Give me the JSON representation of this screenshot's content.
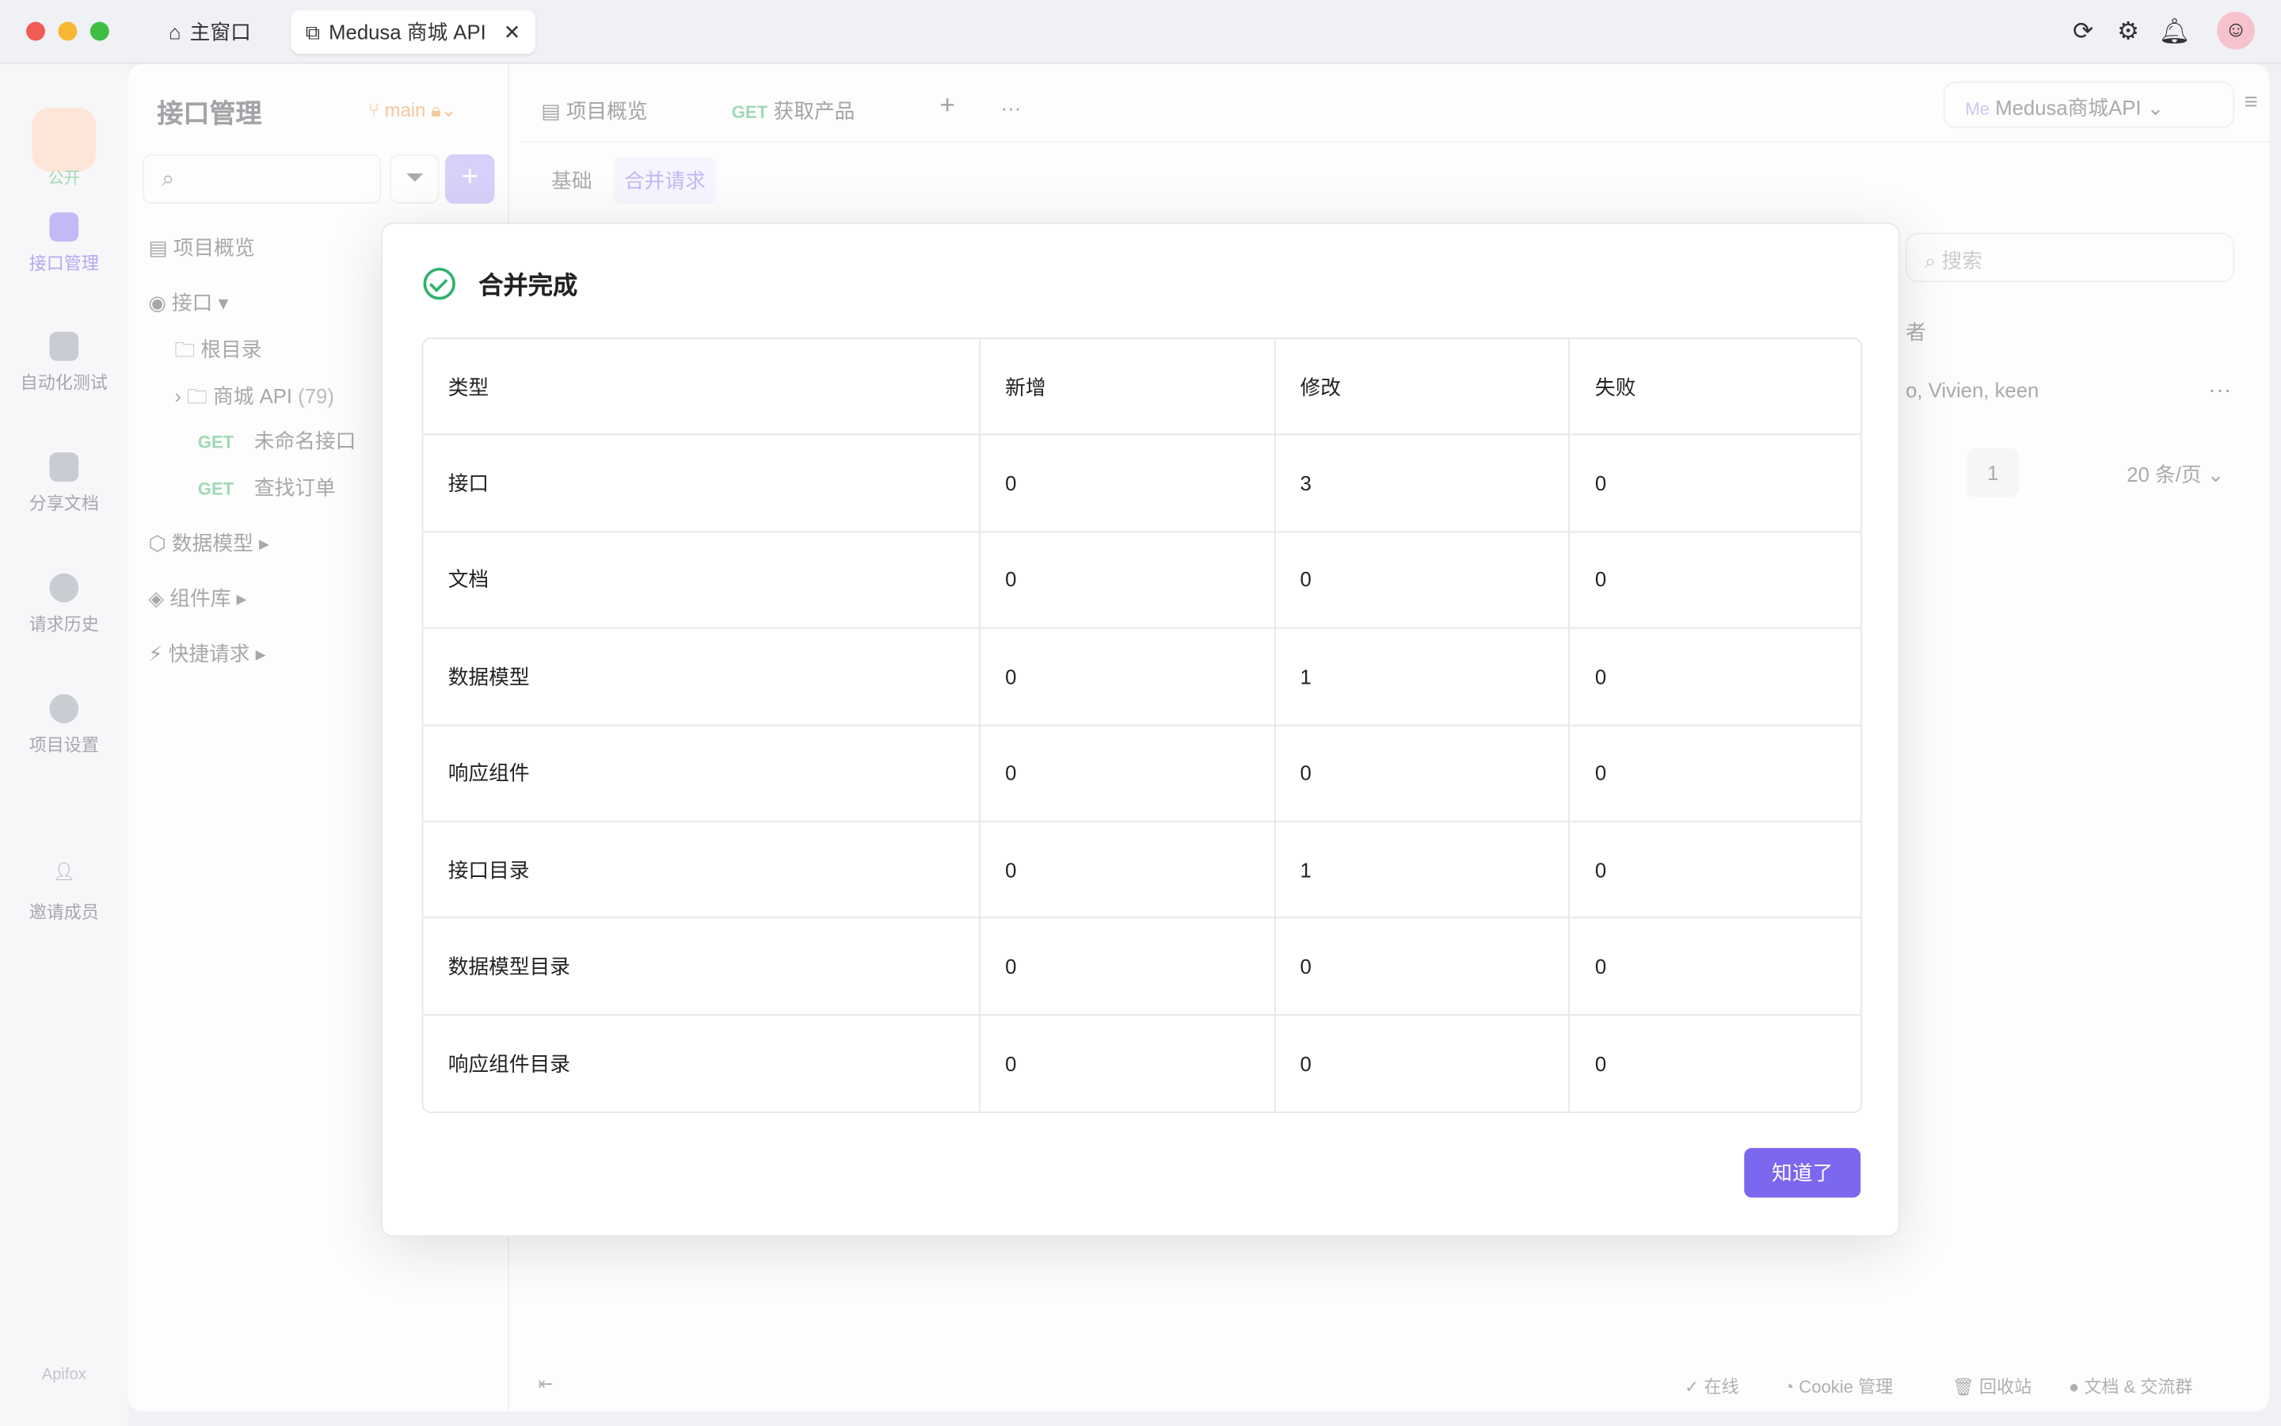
{
  "titlebar": {
    "tabs": [
      {
        "label": "主窗口",
        "icon": "home-icon"
      },
      {
        "label": "Medusa 商城 API",
        "icon": "external-link-icon",
        "active": true
      }
    ],
    "icons": [
      "refresh-icon",
      "gear-icon",
      "bell-icon"
    ]
  },
  "leftbar": {
    "public_badge": "公开",
    "items": [
      {
        "label": "接口管理"
      },
      {
        "label": "自动化测试"
      },
      {
        "label": "分享文档"
      },
      {
        "label": "请求历史"
      },
      {
        "label": "项目设置"
      },
      {
        "label": "邀请成员"
      }
    ],
    "logo": "Apifox"
  },
  "sidebar": {
    "title": "接口管理",
    "branch": "main",
    "tree": {
      "overview": "项目概览",
      "api": "接口",
      "root": "根目录",
      "folder": "商城 API",
      "folder_count": "(79)",
      "items": [
        {
          "method": "GET",
          "name": "未命名接口"
        },
        {
          "method": "GET",
          "name": "查找订单"
        }
      ],
      "models": "数据模型",
      "components": "组件库",
      "quick": "快捷请求"
    }
  },
  "main": {
    "tabs": [
      {
        "label": "项目概览"
      },
      {
        "method": "GET",
        "label": "获取产品"
      }
    ],
    "subtabs": [
      "基础",
      "合并请求"
    ],
    "project_select": {
      "badge": "Me",
      "label": "Medusa商城API"
    },
    "search_placeholder": "搜索",
    "col_partial": "者",
    "row_partial": "o, Vivien, keen",
    "page": "1",
    "page_size": "20 条/页"
  },
  "footer": {
    "items": [
      "在线",
      "Cookie 管理",
      "回收站",
      "文档 & 交流群"
    ]
  },
  "modal": {
    "title": "合并完成",
    "headers": [
      "类型",
      "新增",
      "修改",
      "失败"
    ],
    "rows": [
      [
        "接口",
        "0",
        "3",
        "0"
      ],
      [
        "文档",
        "0",
        "0",
        "0"
      ],
      [
        "数据模型",
        "0",
        "1",
        "0"
      ],
      [
        "响应组件",
        "0",
        "0",
        "0"
      ],
      [
        "接口目录",
        "0",
        "1",
        "0"
      ],
      [
        "数据模型目录",
        "0",
        "0",
        "0"
      ],
      [
        "响应组件目录",
        "0",
        "0",
        "0"
      ]
    ],
    "ok_label": "知道了"
  },
  "colors": {
    "accent": "#7b68ee",
    "success": "#2fb36a",
    "get": "#3cb371"
  }
}
